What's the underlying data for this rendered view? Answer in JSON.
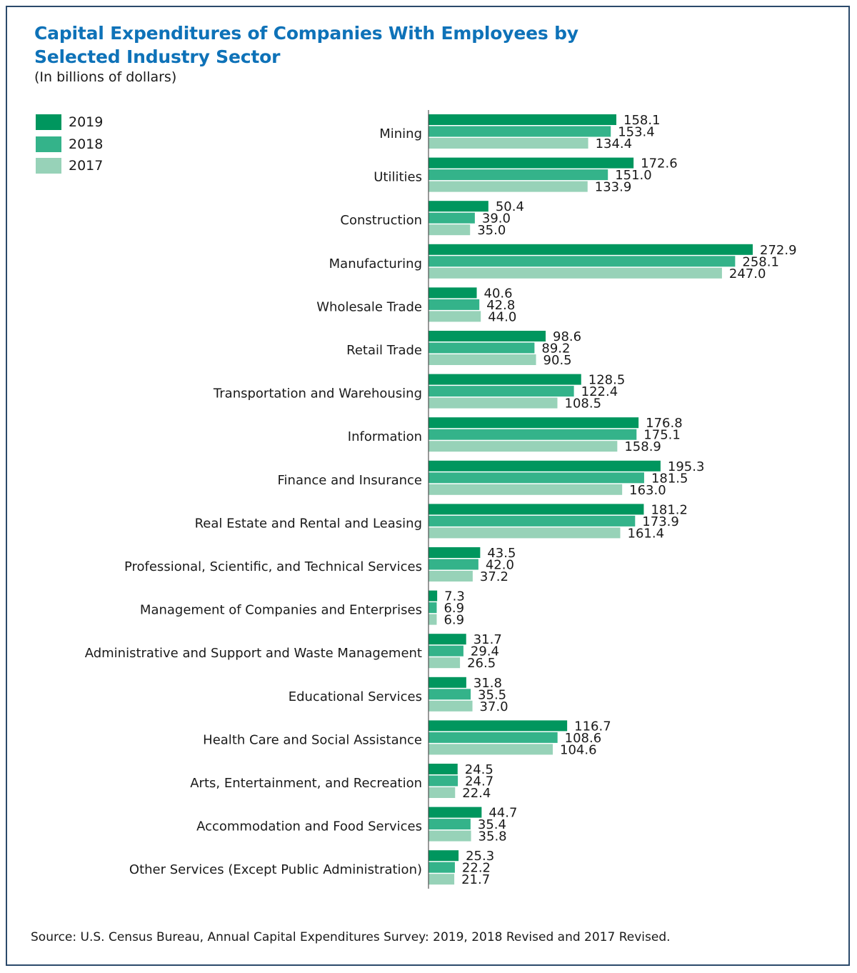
{
  "chart_data": {
    "type": "bar",
    "orientation": "horizontal",
    "title": "Capital Expenditures of Companies With Employees by\nSelected Industry Sector",
    "subtitle": "(In billions of dollars)",
    "categories": [
      "Mining",
      "Utilities",
      "Construction",
      "Manufacturing",
      "Wholesale Trade",
      "Retail Trade",
      "Transportation and Warehousing",
      "Information",
      "Finance and Insurance",
      "Real Estate and Rental and Leasing",
      "Professional, Scientific, and Technical Services",
      "Management of Companies and Enterprises",
      "Administrative and Support and Waste Management",
      "Educational Services",
      "Health Care and Social Assistance",
      "Arts, Entertainment, and Recreation",
      "Accommodation and Food Services",
      "Other Services (Except Public Administration)"
    ],
    "series": [
      {
        "name": "2019",
        "color": "#00965e",
        "values": [
          158.1,
          172.6,
          50.4,
          272.9,
          40.6,
          98.6,
          128.5,
          176.8,
          195.3,
          181.2,
          43.5,
          7.3,
          31.7,
          31.8,
          116.7,
          24.5,
          44.7,
          25.3
        ]
      },
      {
        "name": "2018",
        "color": "#34b38a",
        "values": [
          153.4,
          151.0,
          39.0,
          258.1,
          42.8,
          89.2,
          122.4,
          175.1,
          181.5,
          173.9,
          42.0,
          6.9,
          29.4,
          35.5,
          108.6,
          24.7,
          35.4,
          22.2
        ]
      },
      {
        "name": "2017",
        "color": "#97d2b8",
        "values": [
          134.4,
          133.9,
          35.0,
          247.0,
          44.0,
          90.5,
          108.5,
          158.9,
          163.0,
          161.4,
          37.2,
          6.9,
          26.5,
          37.0,
          104.6,
          22.4,
          35.8,
          21.7
        ]
      }
    ],
    "xlim": [
      0,
      272.9
    ],
    "grid": false,
    "legend": "top-left"
  },
  "source": "Source: U.S. Census Bureau, Annual Capital Expenditures Survey: 2019, 2018 Revised and 2017 Revised."
}
